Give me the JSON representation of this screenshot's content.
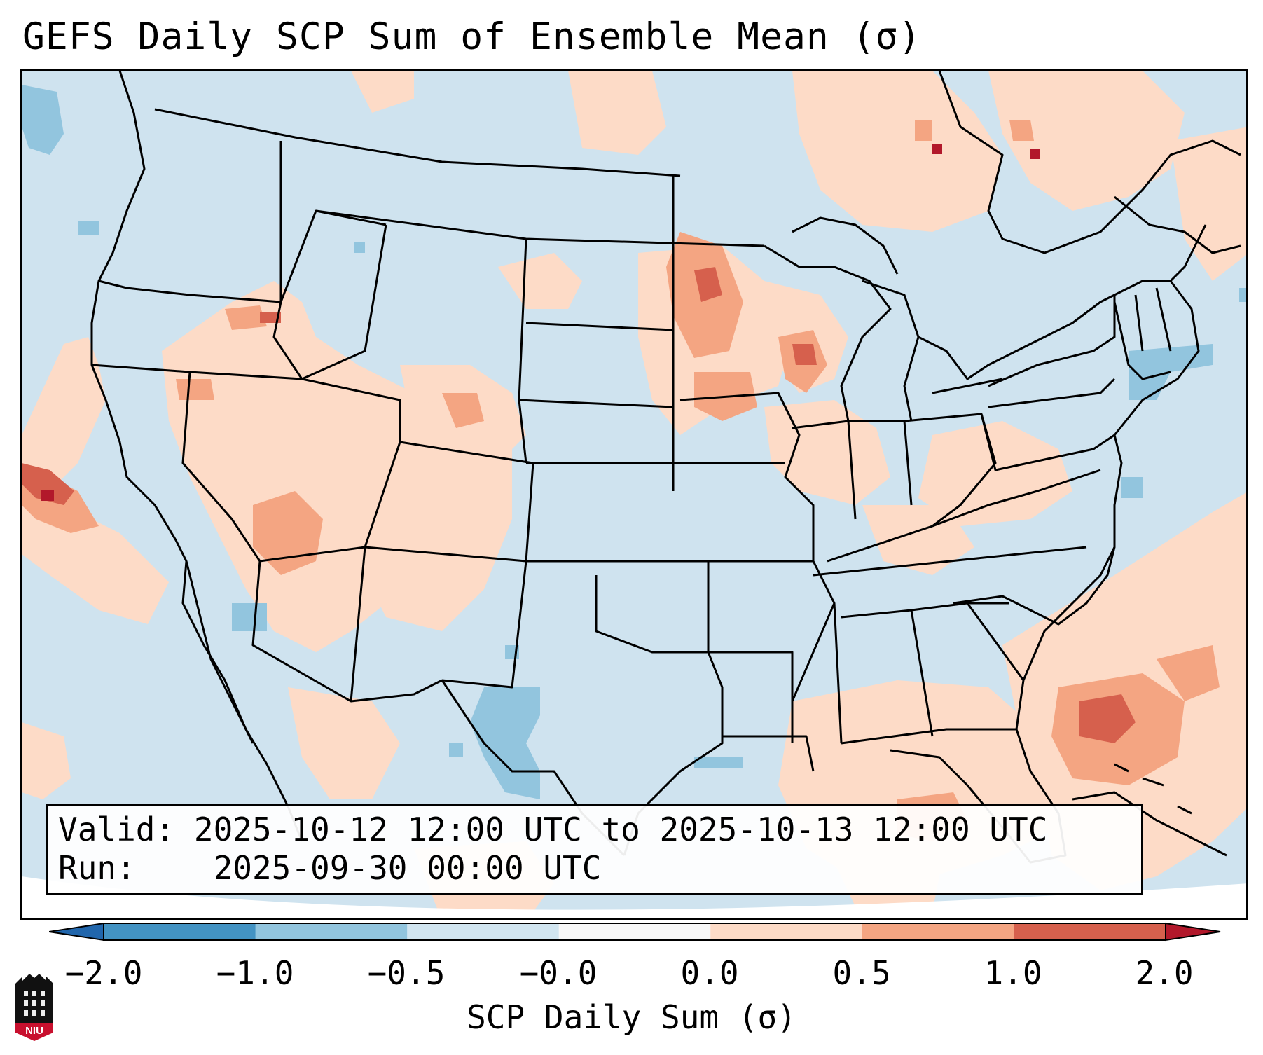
{
  "title": "GEFS Daily SCP Sum of Ensemble Mean (σ)",
  "info": {
    "valid_label": "Valid:",
    "valid_value": "2025-10-12 12:00 UTC to 2025-10-13 12:00 UTC",
    "run_label": "Run:",
    "run_value": "2025-09-30 00:00 UTC"
  },
  "colorbar": {
    "label": "SCP Daily Sum (σ)",
    "ticks": [
      "−2.0",
      "−1.0",
      "−0.5",
      "−0.0",
      "0.0",
      "0.5",
      "1.0",
      "2.0"
    ],
    "colors": [
      "#4393c3",
      "#92c5de",
      "#d1e5f0",
      "#f7f7f7",
      "#fddbc7",
      "#f4a582",
      "#d6604d"
    ],
    "extend_low_color": "#2166ac",
    "extend_high_color": "#b2182b"
  },
  "map": {
    "projection": "Lambert Conformal, CONUS",
    "background_color": "#cfe3ef",
    "anomaly_regions": [
      {
        "area": "Eastern Pacific off Baja",
        "value": 0.3
      },
      {
        "area": "Southern California coast",
        "value": 1.5
      },
      {
        "area": "Arizona / Utah / New Mexico",
        "value": 0.4
      },
      {
        "area": "Minnesota / Wisconsin",
        "value": 0.7
      },
      {
        "area": "Iowa",
        "value": 0.5
      },
      {
        "area": "Ohio Valley",
        "value": 0.3
      },
      {
        "area": "Gulf of Mexico / Florida",
        "value": 0.4
      },
      {
        "area": "Western Atlantic near Bahamas",
        "value": 1.0
      },
      {
        "area": "Southern Ontario / Quebec",
        "value": 0.3
      },
      {
        "area": "West Texas / Mexico",
        "value": -0.7
      }
    ]
  },
  "logo": {
    "text": "NIU",
    "name": "Northern Illinois University"
  }
}
